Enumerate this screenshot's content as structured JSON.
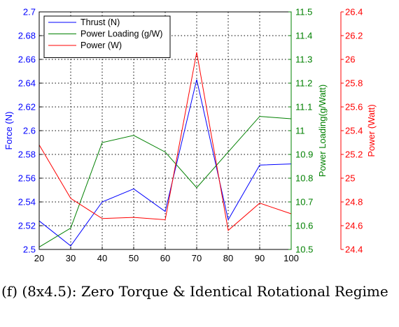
{
  "chart_data": {
    "type": "line",
    "x": [
      20,
      30,
      40,
      50,
      60,
      70,
      80,
      90,
      100
    ],
    "xlim": [
      20,
      100
    ],
    "xticks": [
      "20",
      "30",
      "40",
      "50",
      "60",
      "70",
      "80",
      "90",
      "100"
    ],
    "grid": true,
    "legend_position": "top-left",
    "series": [
      {
        "name": "Thrust (N)",
        "color": "#0000ff",
        "axis": "left",
        "values": [
          2.524,
          2.503,
          2.54,
          2.551,
          2.532,
          2.643,
          2.525,
          2.571,
          2.572
        ]
      },
      {
        "name": "Power Loading (g/W)",
        "color": "#008000",
        "axis": "right1",
        "values": [
          10.51,
          10.59,
          10.95,
          10.98,
          10.91,
          10.76,
          10.91,
          11.06,
          11.05
        ]
      },
      {
        "name": "Power (W)",
        "color": "#ff0000",
        "axis": "right2",
        "values": [
          25.28,
          24.83,
          24.66,
          24.67,
          24.65,
          26.06,
          24.56,
          24.79,
          24.7
        ]
      }
    ],
    "axes": {
      "left": {
        "label": "Force (N)",
        "color": "#0000ff",
        "ylim": [
          2.5,
          2.7
        ],
        "ticks": [
          "2.5",
          "2.52",
          "2.54",
          "2.56",
          "2.58",
          "2.6",
          "2.62",
          "2.64",
          "2.66",
          "2.68",
          "2.7"
        ]
      },
      "right1": {
        "label": "Power Loading(g/Watt)",
        "color": "#008000",
        "ylim": [
          10.5,
          11.5
        ],
        "ticks": [
          "10.5",
          "10.6",
          "10.7",
          "10.8",
          "10.9",
          "11",
          "11.1",
          "11.2",
          "11.3",
          "11.4",
          "11.5"
        ]
      },
      "right2": {
        "label": "Power (Watt)",
        "color": "#ff0000",
        "ylim": [
          24.4,
          26.4
        ],
        "ticks": [
          "24.4",
          "24.6",
          "24.8",
          "25",
          "25.2",
          "25.4",
          "25.6",
          "25.8",
          "26",
          "26.2",
          "26.4"
        ]
      }
    }
  },
  "caption": "(f) (8x4.5): Zero Torque & Identical Rotational Regime"
}
